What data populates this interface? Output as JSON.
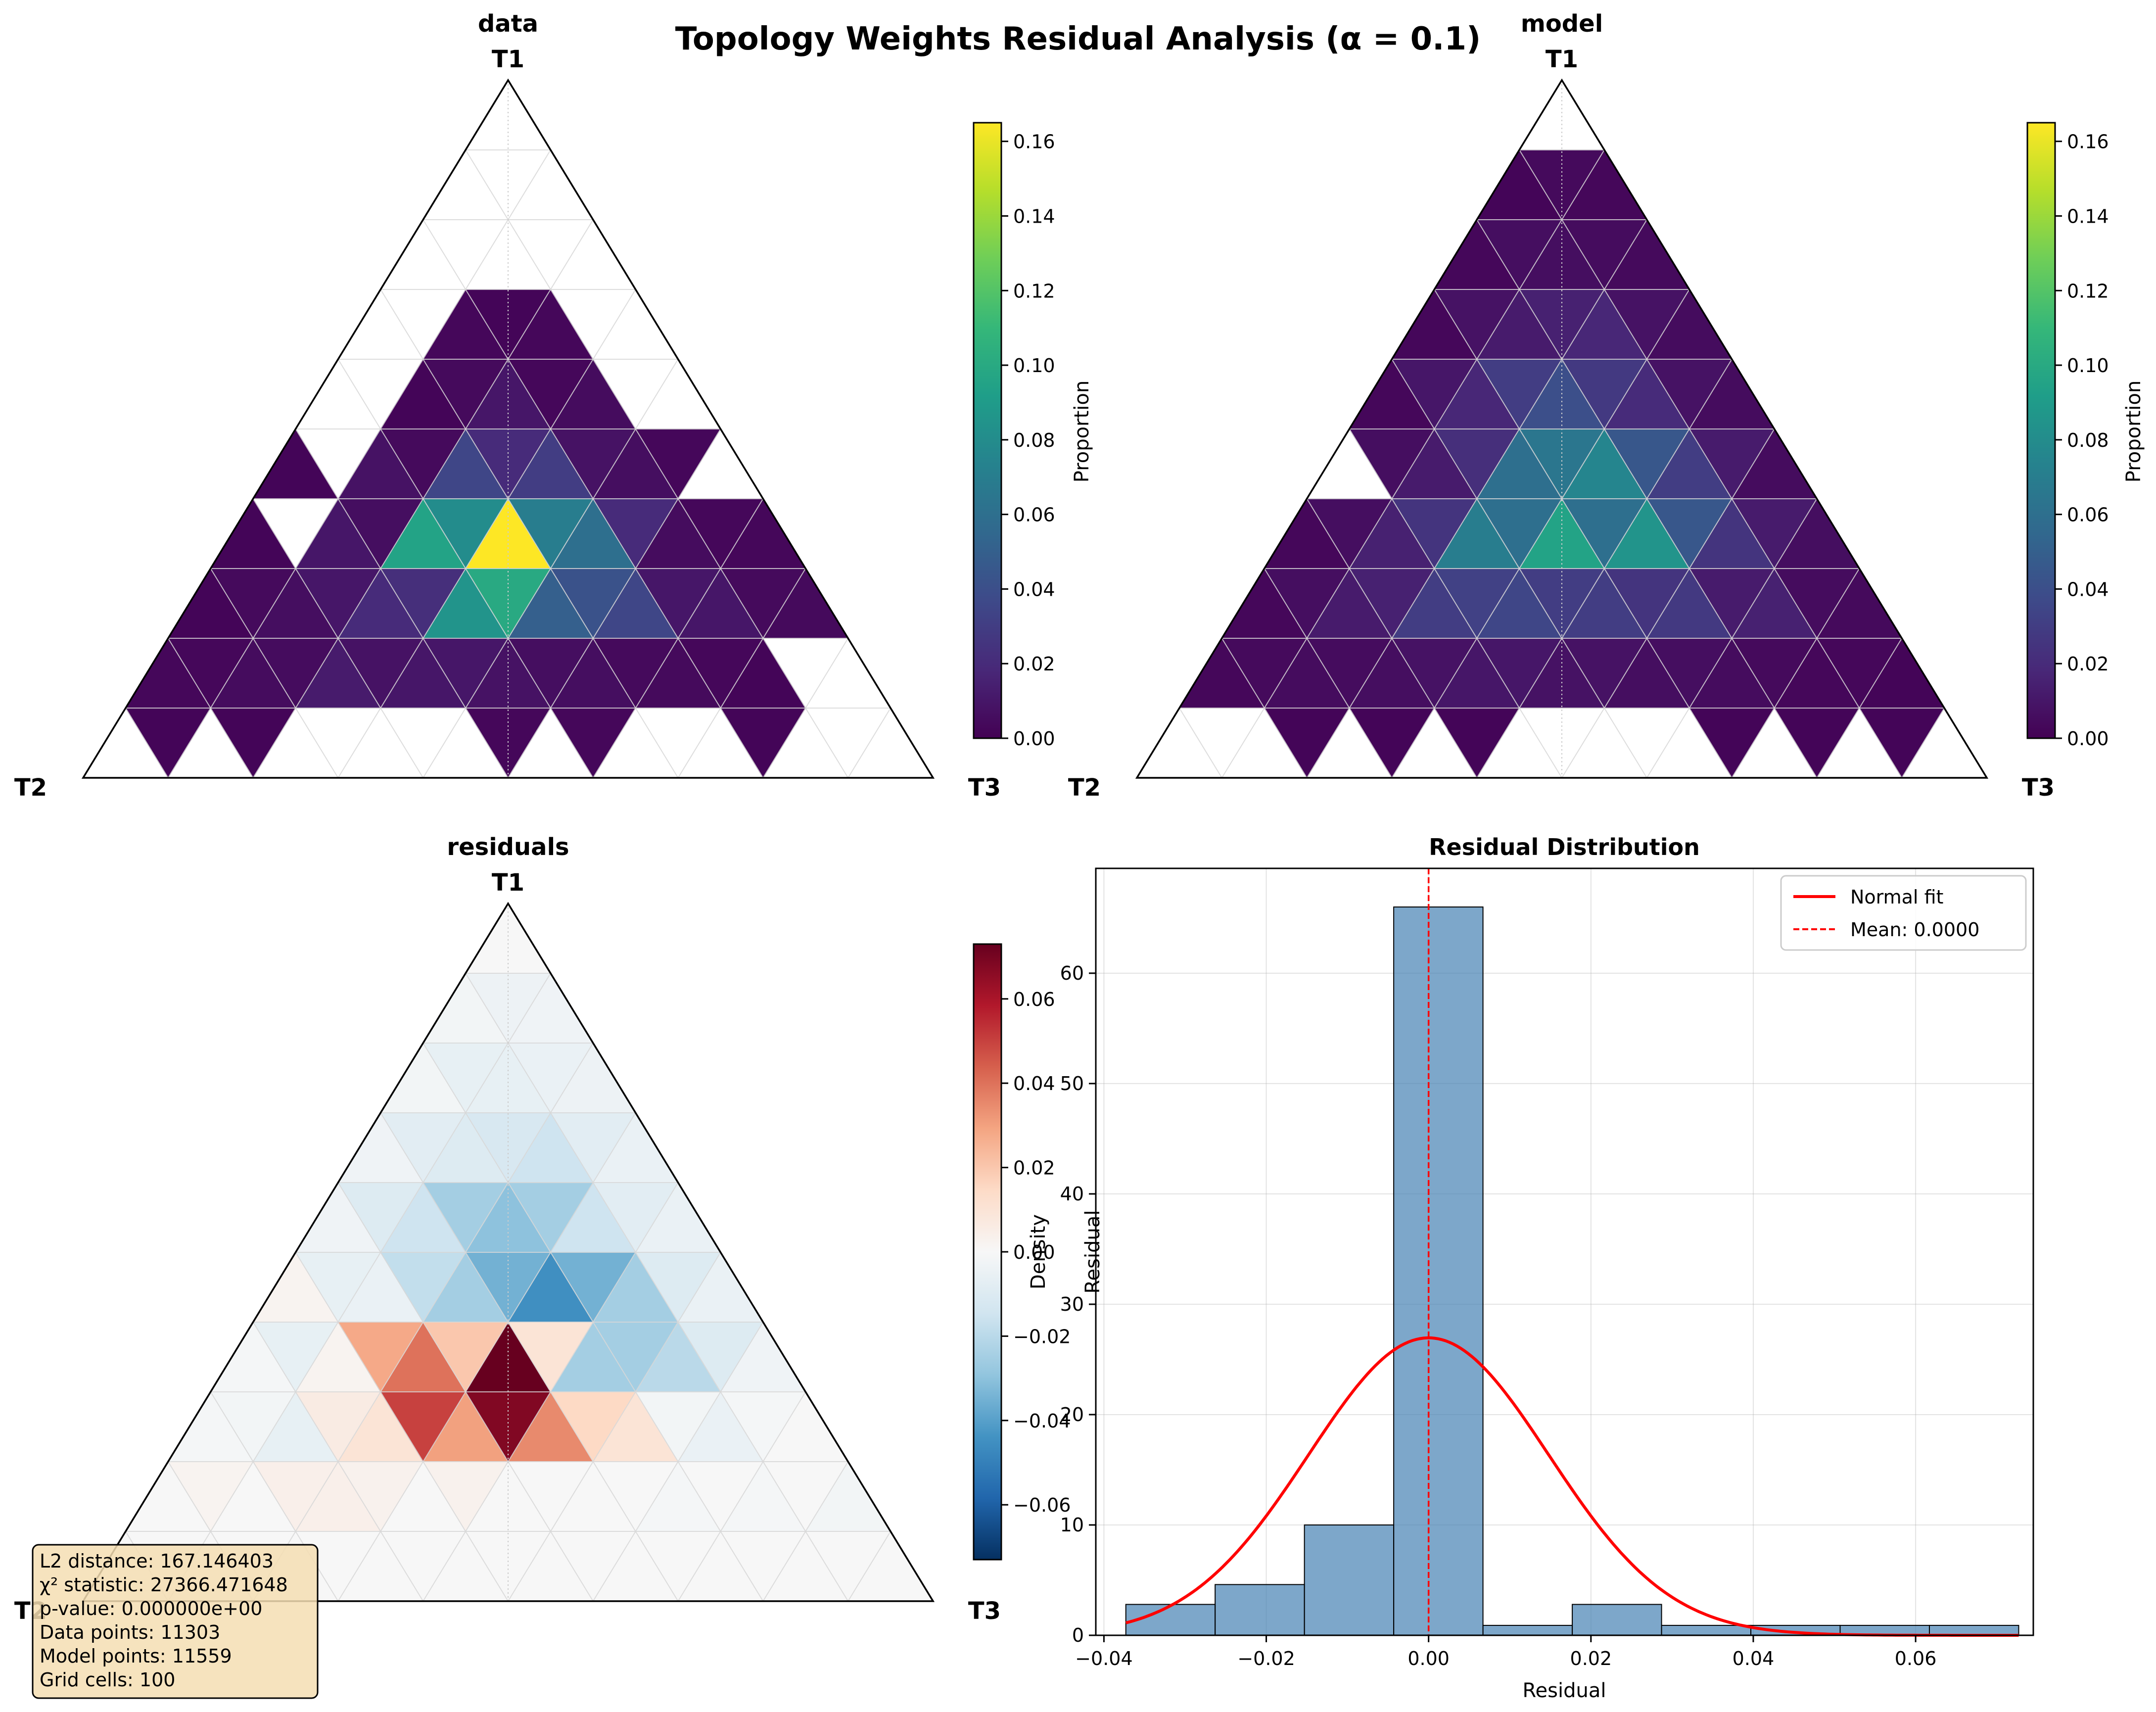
{
  "figure": {
    "title": "Topology Weights Residual Analysis (α = 0.1)"
  },
  "colors": {
    "viridis": [
      "#440154",
      "#482878",
      "#3e4989",
      "#31688e",
      "#26828e",
      "#1f9e89",
      "#35b779",
      "#6ece58",
      "#b5de2b",
      "#fde725"
    ],
    "rdbu_r": [
      "#053061",
      "#2166ac",
      "#4393c3",
      "#92c5de",
      "#d1e5f0",
      "#f7f7f7",
      "#fddbc7",
      "#f4a582",
      "#d6604d",
      "#b2182b",
      "#67001f"
    ],
    "hist_fill": "#4682b4",
    "hist_edge": "#000000",
    "normal_fit": "#ff0000",
    "mean_line": "#ff0000",
    "stats_box_bg": "#f5deb3"
  },
  "chart_data": [
    {
      "type": "heatmap",
      "subtype": "ternary",
      "title": "data",
      "vertex_labels": {
        "top": "T1",
        "left": "T2",
        "right": "T3"
      },
      "colormap": "viridis",
      "color_range": [
        0,
        0.165
      ],
      "colorbar": {
        "label": "Proportion",
        "ticks": [
          "0.00",
          "0.02",
          "0.04",
          "0.06",
          "0.08",
          "0.10",
          "0.12",
          "0.14",
          "0.16"
        ],
        "tick_values": [
          0,
          0.02,
          0.04,
          0.06,
          0.08,
          0.1,
          0.12,
          0.14,
          0.16
        ]
      },
      "rows": [
        {
          "up": [
            null
          ],
          "down": []
        },
        {
          "up": [
            null,
            null
          ],
          "down": [
            null
          ]
        },
        {
          "up": [
            null,
            null,
            null
          ],
          "down": [
            null,
            null
          ]
        },
        {
          "up": [
            null,
            0.003,
            0.003,
            null
          ],
          "down": [
            null,
            0.002,
            null
          ]
        },
        {
          "up": [
            null,
            0.002,
            0.01,
            0.005,
            null
          ],
          "down": [
            null,
            0.004,
            0.003,
            null
          ]
        },
        {
          "up": [
            0.002,
            0.008,
            0.035,
            0.03,
            0.006,
            null
          ],
          "down": [
            null,
            0.004,
            0.02,
            0.008,
            0.003
          ]
        },
        {
          "up": [
            0.002,
            0.01,
            0.095,
            0.165,
            0.06,
            0.005,
            0.003
          ],
          "down": [
            null,
            0.006,
            0.08,
            0.07,
            0.02,
            0.003
          ]
        },
        {
          "up": [
            0.002,
            0.006,
            0.02,
            0.085,
            0.05,
            0.035,
            0.01,
            0.004
          ],
          "down": [
            0.004,
            0.01,
            0.022,
            0.1,
            0.042,
            0.01,
            0.004
          ]
        },
        {
          "up": [
            0.003,
            0.005,
            0.012,
            0.01,
            0.008,
            0.006,
            0.004,
            0.002,
            null
          ],
          "down": [
            0.003,
            0.005,
            0.008,
            0.01,
            0.006,
            0.004,
            0.003,
            null
          ]
        },
        {
          "up": [
            null,
            null,
            null,
            null,
            null,
            null,
            null,
            null,
            null,
            null
          ],
          "down": [
            0.002,
            0.002,
            null,
            null,
            0.003,
            0.003,
            null,
            0.002,
            null
          ]
        }
      ]
    },
    {
      "type": "heatmap",
      "subtype": "ternary",
      "title": "model",
      "vertex_labels": {
        "top": "T1",
        "left": "T2",
        "right": "T3"
      },
      "colormap": "viridis",
      "color_range": [
        0,
        0.165
      ],
      "colorbar": {
        "label": "Proportion",
        "ticks": [
          "0.00",
          "0.02",
          "0.04",
          "0.06",
          "0.08",
          "0.10",
          "0.12",
          "0.14",
          "0.16"
        ],
        "tick_values": [
          0,
          0.02,
          0.04,
          0.06,
          0.08,
          0.1,
          0.12,
          0.14,
          0.16
        ]
      },
      "rows": [
        {
          "up": [
            null
          ],
          "down": []
        },
        {
          "up": [
            0.002,
            0.003
          ],
          "down": [
            0.004
          ]
        },
        {
          "up": [
            0.003,
            0.006,
            0.004
          ],
          "down": [
            0.006,
            0.005
          ]
        },
        {
          "up": [
            0.003,
            0.012,
            0.018,
            0.005
          ],
          "down": [
            0.008,
            0.015,
            0.008
          ]
        },
        {
          "up": [
            0.003,
            0.018,
            0.04,
            0.02,
            0.005
          ],
          "down": [
            0.01,
            0.03,
            0.028,
            0.008
          ]
        },
        {
          "up": [
            null,
            0.012,
            0.06,
            0.075,
            0.03,
            0.005
          ],
          "down": [
            0.006,
            0.022,
            0.065,
            0.045,
            0.012
          ]
        },
        {
          "up": [
            0.003,
            0.015,
            0.07,
            0.095,
            0.085,
            0.025,
            0.006
          ],
          "down": [
            0.006,
            0.025,
            0.06,
            0.06,
            0.045,
            0.012
          ]
        },
        {
          "up": [
            0.003,
            0.012,
            0.03,
            0.035,
            0.03,
            0.028,
            0.015,
            0.004
          ],
          "down": [
            0.006,
            0.015,
            0.032,
            0.03,
            0.025,
            0.012,
            0.005
          ]
        },
        {
          "up": [
            0.003,
            0.005,
            0.006,
            0.01,
            0.008,
            0.006,
            0.005,
            0.003,
            0.002
          ],
          "down": [
            0.004,
            0.005,
            0.008,
            0.01,
            0.008,
            0.006,
            0.004,
            0.003
          ]
        },
        {
          "up": [
            null,
            null,
            null,
            null,
            null,
            null,
            null,
            null,
            null,
            null
          ],
          "down": [
            null,
            0.002,
            0.002,
            0.002,
            null,
            null,
            0.002,
            0.002,
            0.002
          ]
        }
      ]
    },
    {
      "type": "heatmap",
      "subtype": "ternary",
      "title": "residuals",
      "vertex_labels": {
        "top": "T1",
        "left": "T2",
        "right": "T3"
      },
      "colormap": "rdbu_r",
      "color_range": [
        -0.073,
        0.073
      ],
      "colorbar": {
        "label": "Residual",
        "ticks": [
          "−0.06",
          "−0.04",
          "−0.02",
          "0.00",
          "0.02",
          "0.04",
          "0.06"
        ],
        "tick_values": [
          -0.06,
          -0.04,
          -0.02,
          0,
          0.02,
          0.04,
          0.06
        ]
      },
      "rows": [
        {
          "up": [
            0.0
          ],
          "down": []
        },
        {
          "up": [
            -0.002,
            -0.003
          ],
          "down": [
            -0.004
          ]
        },
        {
          "up": [
            -0.002,
            -0.006,
            -0.004
          ],
          "down": [
            -0.006,
            -0.005
          ]
        },
        {
          "up": [
            -0.003,
            -0.01,
            -0.015,
            -0.005
          ],
          "down": [
            -0.008,
            -0.012,
            -0.008
          ]
        },
        {
          "up": [
            -0.003,
            -0.015,
            -0.03,
            -0.015,
            -0.005
          ],
          "down": [
            -0.01,
            -0.025,
            -0.025,
            -0.008
          ]
        },
        {
          "up": [
            0.002,
            -0.005,
            -0.025,
            -0.045,
            -0.025,
            -0.005
          ],
          "down": [
            -0.006,
            -0.018,
            -0.035,
            -0.035,
            -0.01
          ]
        },
        {
          "up": [
            -0.001,
            0.002,
            0.04,
            0.073,
            -0.025,
            -0.02,
            -0.003
          ],
          "down": [
            -0.006,
            0.028,
            0.02,
            0.01,
            -0.025,
            -0.01
          ]
        },
        {
          "up": [
            -0.001,
            -0.006,
            0.01,
            0.03,
            0.035,
            0.01,
            -0.005,
            0.0
          ],
          "down": [
            -0.002,
            0.006,
            0.05,
            0.068,
            0.015,
            -0.002,
            -0.001
          ]
        },
        {
          "up": [
            0.0,
            0.0,
            0.004,
            0.0,
            0.0,
            0.0,
            -0.001,
            -0.001,
            -0.002
          ],
          "down": [
            0.002,
            0.004,
            0.003,
            0.003,
            0.0,
            0.0,
            0.0,
            0.0
          ]
        },
        {
          "up": [
            0.0,
            0.0,
            0.0,
            0.0,
            0.0,
            0.0,
            0.0,
            0.0,
            0.0,
            0.0
          ],
          "down": [
            0.0,
            0.0,
            0.0,
            0.0,
            0.0,
            0.0,
            0.0,
            0.0,
            0.0
          ]
        }
      ],
      "stats_box": [
        "L2 distance: 167.146403",
        "χ² statistic: 27366.471648",
        "p-value: 0.000000e+00",
        "Data points: 11303",
        "Model points: 11559",
        "Grid cells: 100"
      ]
    },
    {
      "type": "bar",
      "subtype": "histogram",
      "title": "Residual Distribution",
      "xlabel": "Residual",
      "ylabel": "Density",
      "xlim": [
        -0.041,
        0.0745
      ],
      "ylim": [
        0,
        69.5
      ],
      "xticks": [
        -0.04,
        -0.02,
        0.0,
        0.02,
        0.04,
        0.06
      ],
      "xtick_labels": [
        "−0.04",
        "−0.02",
        "0.00",
        "0.02",
        "0.04",
        "0.06"
      ],
      "yticks": [
        0,
        10,
        20,
        30,
        40,
        50,
        60
      ],
      "ytick_labels": [
        "0",
        "10",
        "20",
        "30",
        "40",
        "50",
        "60"
      ],
      "grid": true,
      "bin_edges": [
        -0.0373,
        -0.0263,
        -0.0153,
        -0.0043,
        0.0067,
        0.0177,
        0.0287,
        0.0397,
        0.0507,
        0.0617,
        0.0727
      ],
      "counts": [
        2.8,
        4.6,
        10.0,
        66.0,
        0.9,
        2.8,
        0.9,
        0.9,
        0.9,
        0.9
      ],
      "normal_fit": {
        "mean": 0.0,
        "std": 0.0148
      },
      "mean_value": 0.0,
      "legend": {
        "position": "upper right",
        "entries": [
          "Normal fit",
          "Mean: 0.0000"
        ]
      }
    }
  ]
}
